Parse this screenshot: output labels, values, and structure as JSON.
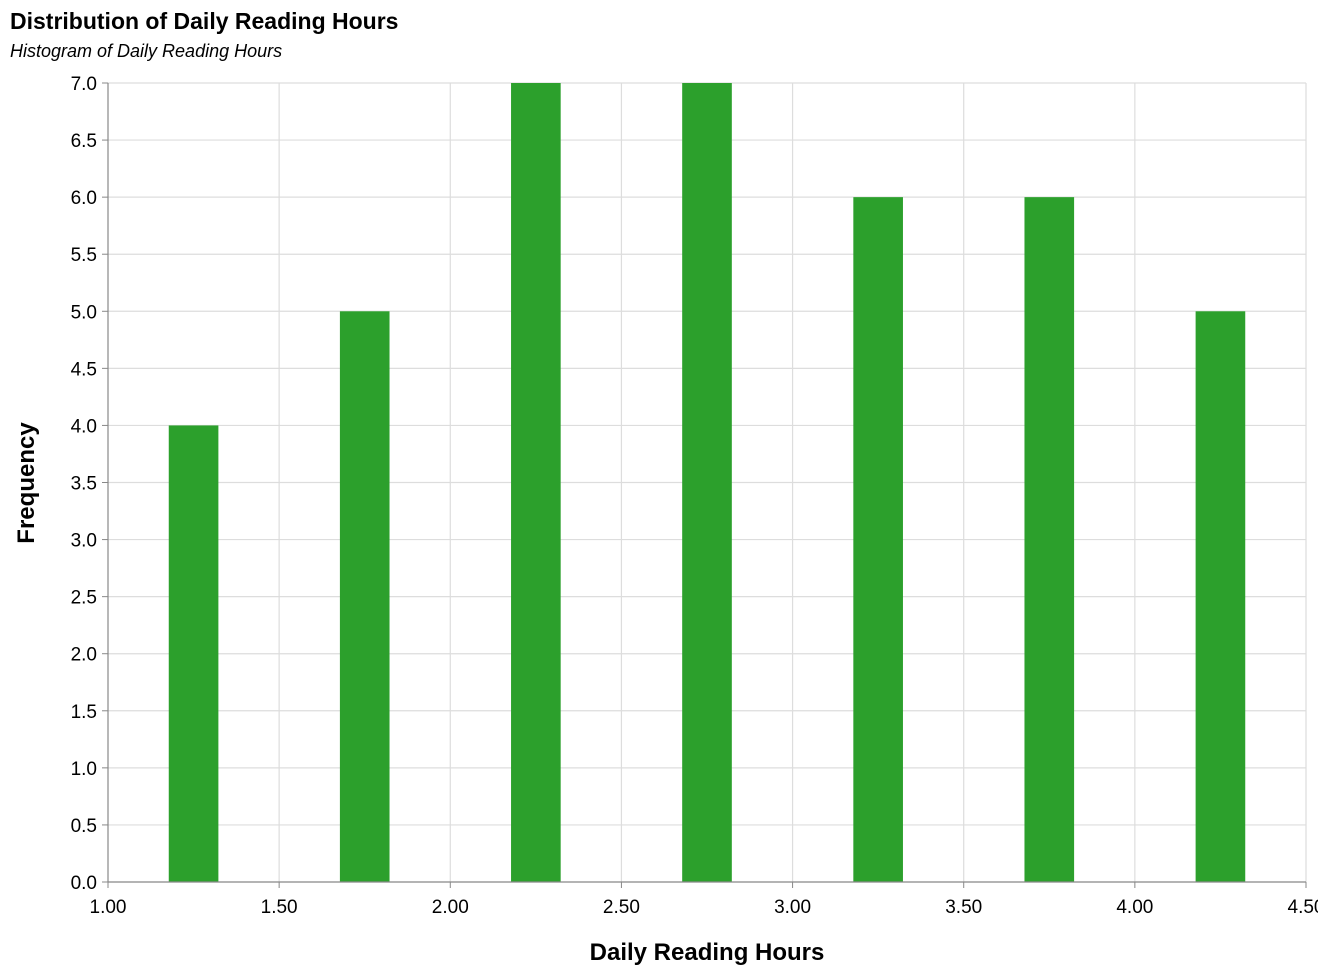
{
  "chart_data": {
    "type": "bar",
    "title": "Distribution of Daily Reading Hours",
    "subtitle": "Histogram of Daily Reading Hours",
    "xlabel": "Daily Reading Hours",
    "ylabel": "Frequency",
    "bin_width": 0.5,
    "bar_color": "#2ca02c",
    "grid": true,
    "xlim": [
      1.0,
      4.5
    ],
    "ylim": [
      0,
      7
    ],
    "x_ticks": [
      "1.00",
      "1.50",
      "2.00",
      "2.50",
      "3.00",
      "3.50",
      "4.00",
      "4.50"
    ],
    "y_ticks": [
      "0.0",
      "0.5",
      "1.0",
      "1.5",
      "2.0",
      "2.5",
      "3.0",
      "3.5",
      "4.0",
      "4.5",
      "5.0",
      "5.5",
      "6.0",
      "6.5",
      "7.0"
    ],
    "x": [
      1.25,
      1.75,
      2.25,
      2.75,
      3.25,
      3.75,
      4.25
    ],
    "values": [
      4,
      5,
      7,
      7,
      6,
      6,
      5
    ]
  }
}
